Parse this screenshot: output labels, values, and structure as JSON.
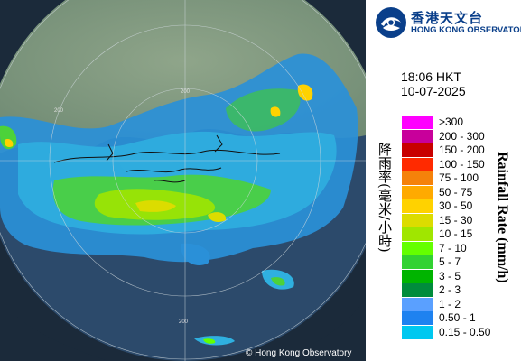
{
  "logo": {
    "chinese": "香港天文台",
    "english": "HONG KONG OBSERVATORY"
  },
  "timestamp": {
    "time": "18:06 HKT",
    "date": "10-07-2025"
  },
  "legend": {
    "title_chinese": "降雨率(毫米/小時)",
    "title_english": "Rainfall Rate (mm/h)",
    "items": [
      {
        "label": ">300",
        "color": "#ff00ff"
      },
      {
        "label": "200 - 300",
        "color": "#c8009b"
      },
      {
        "label": "150 - 200",
        "color": "#c80000"
      },
      {
        "label": "100 - 150",
        "color": "#ff2a00"
      },
      {
        "label": "75 - 100",
        "color": "#f5820a"
      },
      {
        "label": "50 - 75",
        "color": "#ffaa00"
      },
      {
        "label": "30 - 50",
        "color": "#ffd200"
      },
      {
        "label": "15 - 30",
        "color": "#dcdc00"
      },
      {
        "label": "10 - 15",
        "color": "#a0e600"
      },
      {
        "label": "7 - 10",
        "color": "#64ff00"
      },
      {
        "label": "5 - 7",
        "color": "#32d232"
      },
      {
        "label": "3 - 5",
        "color": "#00b400"
      },
      {
        "label": "2 - 3",
        "color": "#008c3c"
      },
      {
        "label": "1 - 2",
        "color": "#5aa0ff"
      },
      {
        "label": "0.50 - 1",
        "color": "#1e82f0"
      },
      {
        "label": "0.15 - 0.50",
        "color": "#00c8f0"
      }
    ]
  },
  "map": {
    "copyright": "© Hong Kong Observatory",
    "range_ring_labels": [
      "200",
      "200",
      "200"
    ]
  }
}
